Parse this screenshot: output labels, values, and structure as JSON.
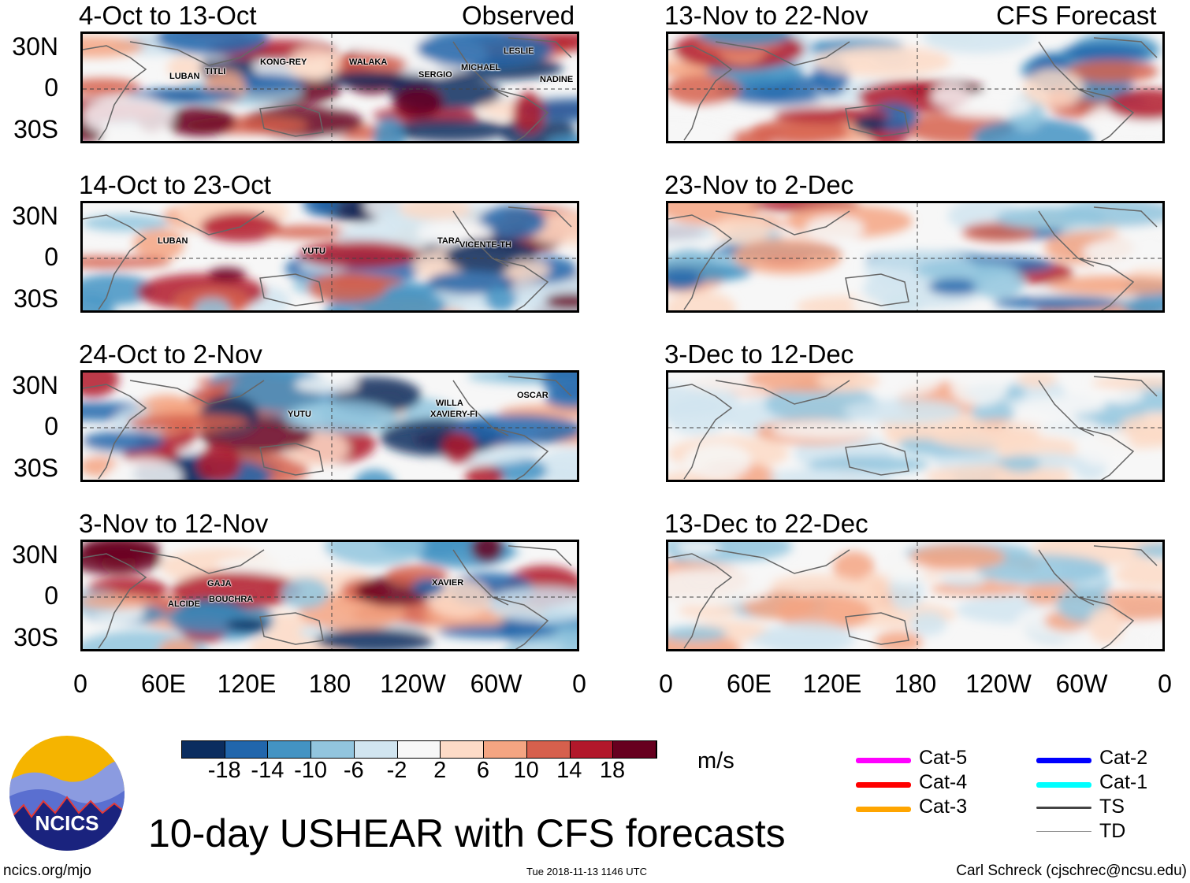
{
  "header": {
    "left_label": "Observed",
    "right_label": "CFS Forecast"
  },
  "colors": [
    "#0b2d5f",
    "#2166ac",
    "#4393c3",
    "#92c5de",
    "#d1e5f0",
    "#f7f7f7",
    "#fddbc7",
    "#f4a582",
    "#d6604d",
    "#b2182b",
    "#67001f"
  ],
  "chart_data": {
    "type": "heatmap",
    "title": "10-day USHEAR with CFS forecasts",
    "units": "m/s",
    "lat_ticks": [
      "30N",
      "0",
      "30S"
    ],
    "lon_ticks": [
      "0",
      "60E",
      "120E",
      "180",
      "120W",
      "60W",
      "0"
    ],
    "colorbar_ticks": [
      "-18",
      "-14",
      "-10",
      "-6",
      "-2",
      "2",
      "6",
      "10",
      "14",
      "18"
    ],
    "panels": [
      {
        "title": "4-Oct to 13-Oct",
        "type": "observed",
        "storms": [
          "LUBAN",
          "TITLI",
          "KONG-REY",
          "WALAKA",
          "SERGIO",
          "MICHAEL",
          "LESLIE",
          "NADINE"
        ]
      },
      {
        "title": "14-Oct to 23-Oct",
        "type": "observed",
        "storms": [
          "LUBAN",
          "YUTU",
          "TARA",
          "VICENTE-TH"
        ]
      },
      {
        "title": "24-Oct to 2-Nov",
        "type": "observed",
        "storms": [
          "YUTU",
          "WILLA",
          "XAVIERY-FI",
          "OSCAR"
        ]
      },
      {
        "title": "3-Nov to 12-Nov",
        "type": "observed",
        "storms": [
          "GAJA",
          "ALCIDE",
          "BOUCHRA",
          "XAVIER"
        ]
      },
      {
        "title": "13-Nov to 22-Nov",
        "type": "forecast",
        "storms": []
      },
      {
        "title": "23-Nov to 2-Dec",
        "type": "forecast",
        "storms": []
      },
      {
        "title": "3-Dec to 12-Dec",
        "type": "forecast",
        "storms": []
      },
      {
        "title": "13-Dec to 22-Dec",
        "type": "forecast",
        "storms": []
      }
    ]
  },
  "legend": {
    "items": [
      {
        "label": "Cat-5",
        "color": "#ff00ff"
      },
      {
        "label": "Cat-4",
        "color": "#ff0000"
      },
      {
        "label": "Cat-3",
        "color": "#ffa500"
      },
      {
        "label": "Cat-2",
        "color": "#0000ff"
      },
      {
        "label": "Cat-1",
        "color": "#00ffff"
      },
      {
        "label": "TS",
        "color": "#444444"
      },
      {
        "label": "TD",
        "color": "#888888"
      }
    ]
  },
  "footer": {
    "url": "ncics.org/mjo",
    "timestamp": "Tue 2018-11-13 1146 UTC",
    "credit": "Carl Schreck (cjschrec@ncsu.edu)",
    "logo_text": "NCICS"
  }
}
